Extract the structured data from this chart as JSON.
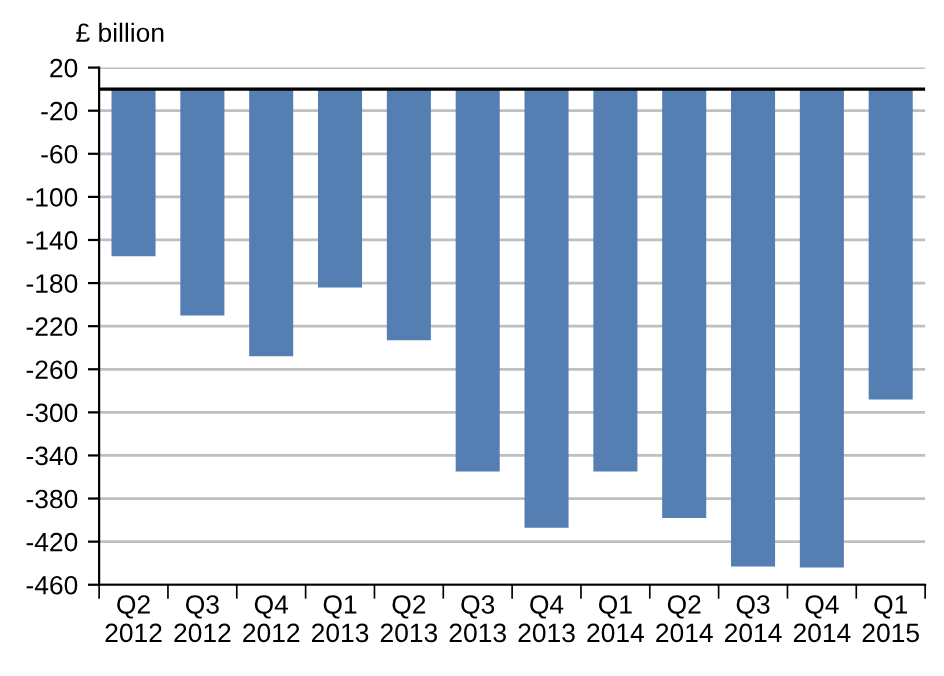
{
  "chart_data": {
    "type": "bar",
    "ylabel": "£ billion",
    "categories": [
      "Q2\n2012",
      "Q3\n2012",
      "Q4\n2012",
      "Q1\n2013",
      "Q2\n2013",
      "Q3\n2013",
      "Q4\n2013",
      "Q1\n2014",
      "Q2\n2014",
      "Q3\n2014",
      "Q4\n2014",
      "Q1\n2015"
    ],
    "values": [
      -155,
      -210,
      -248,
      -184,
      -233,
      -355,
      -407,
      -355,
      -398,
      -443,
      -444,
      -288
    ],
    "color": "#557eb3",
    "ylim": [
      -460,
      20
    ],
    "yticks": [
      20,
      -20,
      -60,
      -100,
      -140,
      -180,
      -220,
      -260,
      -300,
      -340,
      -380,
      -420,
      -460
    ],
    "ref_lines": [
      {
        "axis": "y",
        "value": 0,
        "color": "#000000"
      }
    ],
    "grid": "y"
  }
}
